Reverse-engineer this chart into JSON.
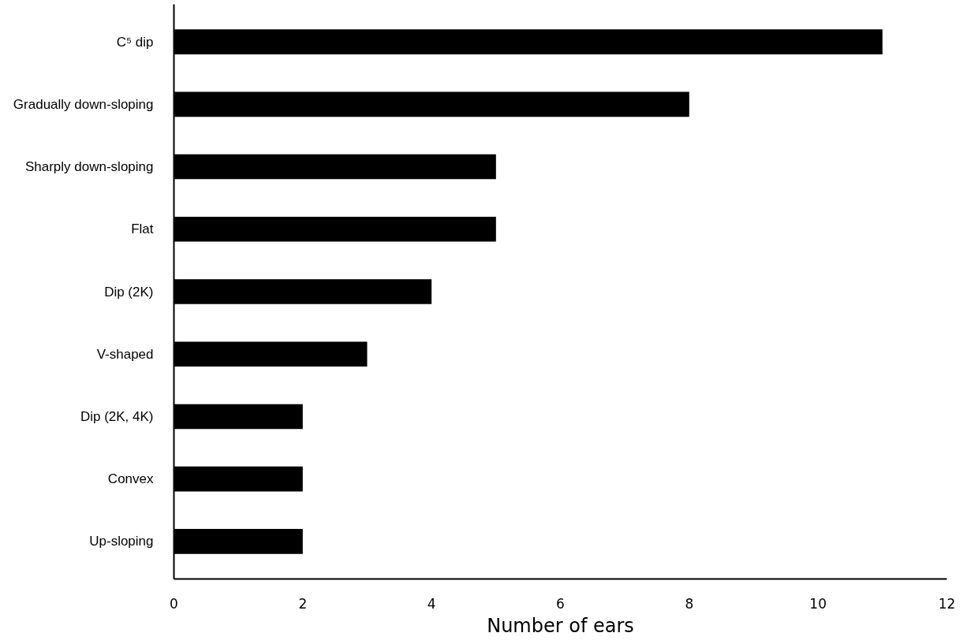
{
  "chart_data": {
    "type": "bar",
    "orientation": "horizontal",
    "xlabel": "Number of ears",
    "categories": [
      "C⁵ dip",
      "Gradually down-sloping",
      "Sharply down-sloping",
      "Flat",
      "Dip (2K)",
      "V-shaped",
      "Dip (2K, 4K)",
      "Convex",
      "Up-sloping"
    ],
    "values": [
      11,
      8,
      5,
      5,
      4,
      3,
      2,
      2,
      2
    ],
    "color": "#000000",
    "xlim": [
      0,
      12
    ],
    "xticks": [
      0,
      2,
      4,
      6,
      8,
      10,
      12
    ],
    "grid": false
  }
}
